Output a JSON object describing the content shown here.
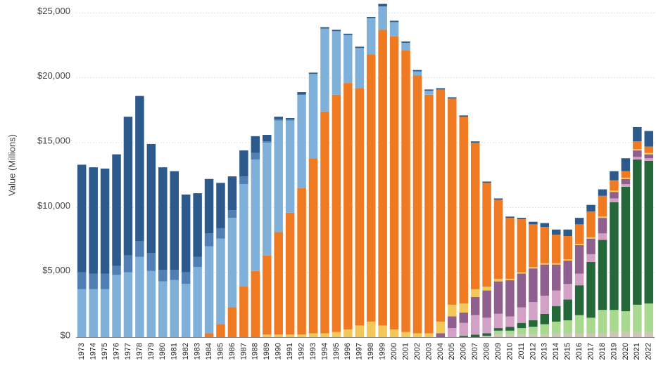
{
  "chart_data": {
    "type": "stacked-bar",
    "y_label": "Value (Millions)",
    "categories": [
      "1973",
      "1974",
      "1975",
      "1976",
      "1977",
      "1978",
      "1979",
      "1980",
      "1981",
      "1982",
      "1983",
      "1984",
      "1985",
      "1986",
      "1987",
      "1988",
      "1989",
      "1990",
      "1991",
      "1992",
      "1993",
      "1994",
      "1995",
      "1996",
      "1997",
      "1998",
      "1999",
      "2000",
      "2001",
      "2002",
      "2003",
      "2004",
      "2005",
      "2006",
      "2007",
      "2008",
      "2009",
      "2010",
      "2011",
      "2012",
      "2013",
      "2014",
      "2015",
      "2016",
      "2017",
      "2018",
      "2019",
      "2020",
      "2021",
      "2022"
    ],
    "series": [
      {
        "color": "#cdc6b4",
        "values": [
          0,
          0,
          0,
          0,
          0,
          0,
          0,
          0,
          0,
          0,
          0,
          0,
          0,
          0,
          0,
          0,
          0,
          0,
          0,
          0,
          0,
          0,
          0,
          0,
          0,
          0,
          0,
          0,
          0,
          0,
          0,
          0,
          0,
          0,
          0,
          100,
          200,
          200,
          200,
          200,
          200,
          300,
          300,
          300,
          300,
          300,
          400,
          400,
          400,
          400
        ]
      },
      {
        "color": "#a9d98e",
        "values": [
          0,
          0,
          0,
          0,
          0,
          0,
          0,
          0,
          0,
          0,
          0,
          0,
          0,
          0,
          0,
          0,
          0,
          0,
          0,
          0,
          0,
          0,
          0,
          0,
          0,
          0,
          0,
          0,
          0,
          0,
          0,
          0,
          0,
          0,
          0,
          0,
          300,
          300,
          500,
          600,
          800,
          900,
          1000,
          1400,
          1200,
          1800,
          1700,
          1600,
          2100,
          2200
        ]
      },
      {
        "color": "#24683a",
        "values": [
          0,
          0,
          0,
          0,
          0,
          0,
          0,
          0,
          0,
          0,
          0,
          0,
          0,
          0,
          0,
          0,
          0,
          0,
          0,
          0,
          0,
          0,
          0,
          0,
          0,
          0,
          0,
          0,
          0,
          0,
          0,
          0,
          0,
          100,
          200,
          200,
          200,
          300,
          400,
          500,
          800,
          1200,
          1600,
          2300,
          4300,
          5400,
          8300,
          9600,
          11200,
          11000
        ]
      },
      {
        "color": "#d4a1c6",
        "values": [
          0,
          0,
          0,
          0,
          0,
          0,
          0,
          0,
          0,
          0,
          0,
          0,
          0,
          0,
          0,
          0,
          0,
          0,
          0,
          0,
          0,
          0,
          0,
          0,
          0,
          0,
          0,
          0,
          0,
          0,
          0,
          0,
          700,
          1000,
          1500,
          1200,
          1100,
          800,
          1200,
          1400,
          1400,
          1200,
          1200,
          900,
          600,
          500,
          300,
          200,
          200,
          200
        ]
      },
      {
        "color": "#8e5f8f",
        "values": [
          0,
          0,
          0,
          0,
          0,
          0,
          0,
          0,
          0,
          0,
          0,
          0,
          0,
          0,
          0,
          0,
          0,
          0,
          0,
          0,
          0,
          0,
          0,
          0,
          0,
          0,
          0,
          0,
          0,
          0,
          0,
          300,
          900,
          800,
          1400,
          2100,
          2500,
          2800,
          2600,
          2600,
          2400,
          2000,
          1800,
          2200,
          1200,
          1200,
          500,
          400,
          500,
          300
        ]
      },
      {
        "color": "#f3c85a",
        "values": [
          0,
          0,
          0,
          0,
          0,
          0,
          0,
          0,
          0,
          0,
          0,
          0,
          0,
          0,
          0,
          0,
          200,
          200,
          200,
          200,
          300,
          300,
          400,
          600,
          900,
          1200,
          900,
          600,
          400,
          300,
          300,
          900,
          900,
          700,
          600,
          300,
          200,
          100,
          100,
          100,
          100,
          100,
          100,
          100,
          100,
          100,
          100,
          100,
          100,
          100
        ]
      },
      {
        "color": "#f07a22",
        "values": [
          0,
          0,
          0,
          0,
          0,
          0,
          0,
          0,
          0,
          0,
          0,
          300,
          1000,
          2300,
          3900,
          5100,
          6100,
          7900,
          9400,
          11300,
          13500,
          17100,
          18300,
          19000,
          18300,
          20600,
          22800,
          22600,
          21700,
          19900,
          18400,
          17900,
          15900,
          14400,
          11300,
          8000,
          6100,
          4700,
          4100,
          3300,
          2800,
          2200,
          1800,
          1500,
          2000,
          1600,
          800,
          500,
          600,
          500
        ]
      },
      {
        "color": "#7fb0da",
        "values": [
          3700,
          3700,
          3700,
          4800,
          5000,
          6200,
          5100,
          4300,
          4400,
          4100,
          5400,
          6700,
          6600,
          6900,
          7900,
          8600,
          8700,
          8600,
          7100,
          7200,
          6500,
          6400,
          4900,
          3700,
          3100,
          2800,
          1800,
          1100,
          600,
          300,
          300,
          0,
          0,
          0,
          0,
          0,
          0,
          0,
          0,
          0,
          0,
          0,
          0,
          0,
          0,
          0,
          0,
          0,
          0,
          0
        ]
      },
      {
        "color": "#4f7fb4",
        "values": [
          1300,
          1200,
          1200,
          700,
          1300,
          1200,
          1400,
          900,
          800,
          900,
          800,
          1000,
          800,
          600,
          600,
          500,
          100,
          100,
          100,
          0,
          0,
          0,
          0,
          0,
          0,
          0,
          0,
          0,
          0,
          0,
          0,
          0,
          0,
          0,
          0,
          0,
          0,
          0,
          0,
          0,
          0,
          0,
          0,
          0,
          0,
          0,
          0,
          0,
          0,
          0
        ]
      },
      {
        "color": "#2c5a8c",
        "values": [
          8300,
          8200,
          8100,
          8600,
          10700,
          11200,
          8400,
          7900,
          7600,
          6000,
          4900,
          4200,
          3500,
          2600,
          2000,
          1300,
          500,
          200,
          100,
          200,
          100,
          100,
          100,
          100,
          100,
          100,
          200,
          100,
          100,
          100,
          100,
          100,
          100,
          100,
          100,
          100,
          100,
          100,
          100,
          200,
          300,
          400,
          500,
          500,
          500,
          500,
          700,
          1000,
          1100,
          1200
        ]
      }
    ],
    "ylim": [
      0,
      26000
    ],
    "yticks": [
      {
        "value": 0,
        "label": "$0"
      },
      {
        "value": 5000,
        "label": "$5,000"
      },
      {
        "value": 10000,
        "label": "$10,000"
      },
      {
        "value": 15000,
        "label": "$15,000"
      },
      {
        "value": 20000,
        "label": "$20,000"
      },
      {
        "value": 25000,
        "label": "$25,000"
      }
    ],
    "grid": true
  }
}
